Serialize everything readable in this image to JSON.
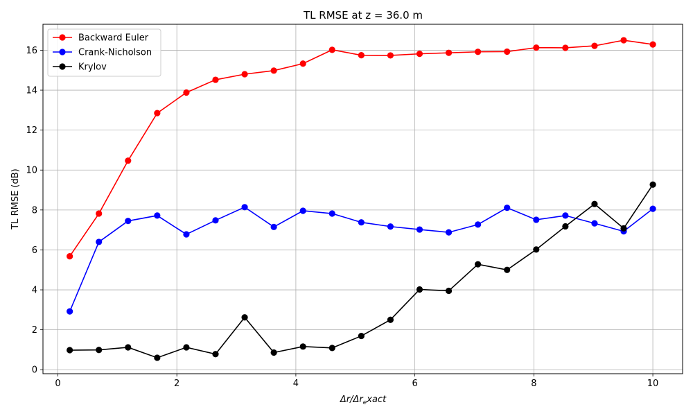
{
  "chart_data": {
    "type": "line",
    "title": "TL RMSE at z = 36.0 m",
    "xlabel": "Δr/Δr_exact",
    "ylabel": "TL RMSE (dB)",
    "xlim": [
      -0.25,
      10.5
    ],
    "ylim": [
      -0.2,
      17.3
    ],
    "xticks": [
      0,
      2,
      4,
      6,
      8,
      10
    ],
    "yticks": [
      0,
      2,
      4,
      6,
      8,
      10,
      12,
      14,
      16
    ],
    "grid": true,
    "legend_position": "top-left",
    "x": [
      0.2,
      0.69,
      1.18,
      1.67,
      2.16,
      2.65,
      3.14,
      3.63,
      4.12,
      4.61,
      5.1,
      5.59,
      6.08,
      6.57,
      7.06,
      7.55,
      8.04,
      8.53,
      9.02,
      9.51,
      10.0
    ],
    "series": [
      {
        "name": "Backward Euler",
        "color": "#ff0000",
        "values": [
          5.68,
          7.82,
          10.47,
          12.85,
          13.88,
          14.52,
          14.8,
          14.98,
          15.33,
          16.02,
          15.75,
          15.74,
          15.82,
          15.87,
          15.92,
          15.93,
          16.13,
          16.12,
          16.22,
          16.5,
          16.29
        ]
      },
      {
        "name": "Crank-Nicholson",
        "color": "#0000ff",
        "values": [
          2.92,
          6.4,
          7.45,
          7.72,
          6.78,
          7.48,
          8.14,
          7.15,
          7.96,
          7.82,
          7.38,
          7.17,
          7.02,
          6.88,
          7.27,
          8.11,
          7.51,
          7.72,
          7.33,
          6.93,
          8.06
        ]
      },
      {
        "name": "Krylov",
        "color": "#000000",
        "values": [
          0.98,
          0.99,
          1.12,
          0.6,
          1.12,
          0.78,
          2.62,
          0.86,
          1.16,
          1.09,
          1.69,
          2.5,
          4.02,
          3.95,
          5.28,
          5.0,
          6.02,
          7.18,
          8.3,
          7.08,
          9.27
        ]
      }
    ]
  }
}
